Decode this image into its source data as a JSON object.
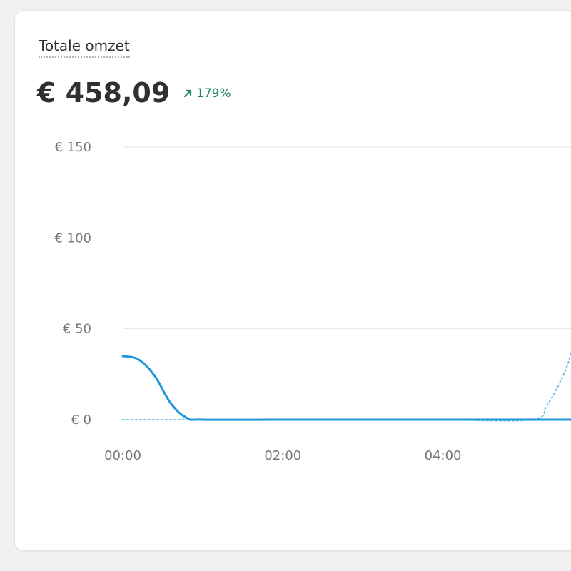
{
  "metric": {
    "title": "Totale omzet",
    "value": "€ 458,09",
    "trend_text": "179%",
    "trend_direction": "up",
    "trend_color": "#1a8a62"
  },
  "chart_data": {
    "type": "line",
    "y_ticks": [
      "€ 150",
      "€ 100",
      "€ 50",
      "€ 0"
    ],
    "y_tick_values": [
      150,
      100,
      50,
      0
    ],
    "ylim": [
      0,
      150
    ],
    "x_ticks": [
      "00:00",
      "02:00",
      "04:00"
    ],
    "x_tick_hours": [
      0,
      2,
      4
    ],
    "xlim": [
      0,
      5.6
    ],
    "grid": true,
    "series": [
      {
        "style": "solid",
        "color": "#1f98d9",
        "x": [
          0,
          0.2,
          0.4,
          0.6,
          0.8,
          1.0,
          2.0,
          3.0,
          4.0,
          5.0,
          5.6
        ],
        "y": [
          35,
          33,
          24,
          9,
          1,
          0,
          0,
          0,
          0,
          0,
          0
        ]
      },
      {
        "style": "dotted",
        "color": "#6cc0ea",
        "x": [
          0,
          1,
          2,
          3,
          4,
          5.1,
          5.3,
          5.5,
          5.6
        ],
        "y": [
          0,
          0,
          0,
          0,
          0,
          0,
          8,
          24,
          36
        ]
      }
    ]
  }
}
